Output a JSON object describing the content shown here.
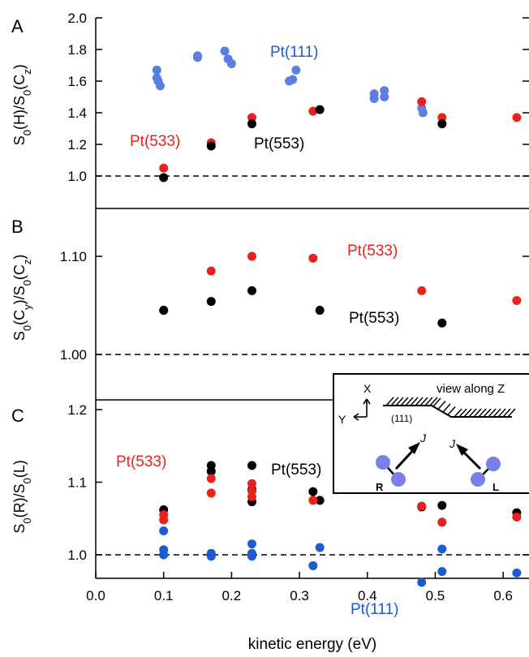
{
  "colors": {
    "pt553": "#000000",
    "pt533": "#e8231c",
    "pt111": "#1a5bd6",
    "pt111_light": "#5b7fe0"
  },
  "xlabel": "kinetic energy (eV)",
  "chart_data": [
    {
      "type": "scatter",
      "panel_label": "A",
      "ylabel_html": "S0(H)/S0(Cz)",
      "ylabel_parts": [
        [
          "S",
          "n"
        ],
        [
          "0",
          "sub"
        ],
        [
          "(H)/S",
          "n"
        ],
        [
          "0",
          "sub"
        ],
        [
          "(C",
          "n"
        ],
        [
          "z",
          "sub"
        ],
        [
          ")",
          "n"
        ]
      ],
      "xlim": [
        0.0,
        0.65
      ],
      "ylim": [
        0.9,
        2.0
      ],
      "yticks": [
        1.0,
        1.2,
        1.4,
        1.6,
        1.8,
        2.0
      ],
      "ytick_labels": [
        "1.0",
        "1.2",
        "1.4",
        "1.6",
        "1.8",
        "2.0"
      ],
      "reference_line": 1.0,
      "series": [
        {
          "name": "Pt(111)",
          "color": "#5b7fe0",
          "x": [
            0.09,
            0.09,
            0.092,
            0.095,
            0.15,
            0.15,
            0.19,
            0.195,
            0.2,
            0.285,
            0.29,
            0.295,
            0.41,
            0.41,
            0.425,
            0.425,
            0.48,
            0.482
          ],
          "y": [
            1.67,
            1.62,
            1.6,
            1.57,
            1.76,
            1.75,
            1.79,
            1.74,
            1.71,
            1.6,
            1.61,
            1.67,
            1.52,
            1.49,
            1.54,
            1.5,
            1.43,
            1.4
          ]
        },
        {
          "name": "Pt(533)",
          "color": "#e8231c",
          "x": [
            0.1,
            0.17,
            0.23,
            0.32,
            0.48,
            0.51,
            0.62
          ],
          "y": [
            1.05,
            1.21,
            1.37,
            1.41,
            1.47,
            1.37,
            1.37
          ]
        },
        {
          "name": "Pt(553)",
          "color": "#000000",
          "x": [
            0.1,
            0.17,
            0.23,
            0.33,
            0.51
          ],
          "y": [
            0.99,
            1.19,
            1.33,
            1.42,
            1.33
          ]
        }
      ]
    },
    {
      "type": "scatter",
      "panel_label": "B",
      "ylabel_html": "S0(Cy)/S0(Cz)",
      "ylabel_parts": [
        [
          "S",
          "n"
        ],
        [
          "0",
          "sub"
        ],
        [
          "(C",
          "n"
        ],
        [
          "y",
          "sub"
        ],
        [
          ")/S",
          "n"
        ],
        [
          "0",
          "sub"
        ],
        [
          "(C",
          "n"
        ],
        [
          "z",
          "sub"
        ],
        [
          ")",
          "n"
        ]
      ],
      "xlim": [
        0.0,
        0.65
      ],
      "ylim": [
        0.968,
        1.148
      ],
      "yticks": [
        1.0,
        1.1
      ],
      "ytick_labels": [
        "1.00",
        "1.10"
      ],
      "reference_line": 1.0,
      "series": [
        {
          "name": "Pt(533)",
          "color": "#e8231c",
          "x": [
            0.1,
            0.17,
            0.23,
            0.32,
            0.48,
            0.62
          ],
          "y": [
            1.045,
            1.085,
            1.1,
            1.098,
            1.065,
            1.055
          ]
        },
        {
          "name": "Pt(553)",
          "color": "#000000",
          "x": [
            0.1,
            0.17,
            0.23,
            0.33,
            0.51
          ],
          "y": [
            1.045,
            1.054,
            1.065,
            1.045,
            1.032
          ]
        }
      ]
    },
    {
      "type": "scatter",
      "panel_label": "C",
      "ylabel_html": "S0(R)/S0(L)",
      "ylabel_parts": [
        [
          "S",
          "n"
        ],
        [
          "0",
          "sub"
        ],
        [
          "(R)/S",
          "n"
        ],
        [
          "0",
          "sub"
        ],
        [
          "(L)",
          "n"
        ]
      ],
      "xlim": [
        0.0,
        0.65
      ],
      "ylim": [
        0.95,
        1.21
      ],
      "yticks": [
        1.0,
        1.1,
        1.2
      ],
      "ytick_labels": [
        "1.0",
        "1.1",
        "1.2"
      ],
      "reference_line": 1.0,
      "series": [
        {
          "name": "Pt(553)",
          "color": "#000000",
          "x": [
            0.1,
            0.17,
            0.17,
            0.23,
            0.23,
            0.23,
            0.32,
            0.33,
            0.48,
            0.51,
            0.62
          ],
          "y": [
            1.062,
            1.123,
            1.115,
            1.123,
            1.09,
            1.073,
            1.087,
            1.075,
            1.066,
            1.068,
            1.058
          ]
        },
        {
          "name": "Pt(533)",
          "color": "#e8231c",
          "x": [
            0.1,
            0.1,
            0.17,
            0.17,
            0.23,
            0.23,
            0.23,
            0.32,
            0.48,
            0.51,
            0.62
          ],
          "y": [
            1.055,
            1.048,
            1.105,
            1.085,
            1.098,
            1.088,
            1.08,
            1.075,
            1.067,
            1.045,
            1.052
          ]
        },
        {
          "name": "Pt(111)",
          "color": "#1a5bd6",
          "x": [
            0.1,
            0.1,
            0.1,
            0.17,
            0.17,
            0.23,
            0.23,
            0.23,
            0.32,
            0.33,
            0.48,
            0.51,
            0.51,
            0.62
          ],
          "y": [
            1.033,
            1.007,
            1.0,
            1.002,
            0.998,
            1.015,
            1.002,
            0.998,
            0.985,
            1.01,
            0.962,
            1.008,
            0.977,
            0.975
          ]
        }
      ]
    }
  ],
  "xaxis": {
    "ticks": [
      0.0,
      0.1,
      0.2,
      0.3,
      0.4,
      0.5,
      0.6
    ],
    "tick_labels": [
      "0.0",
      "0.1",
      "0.2",
      "0.3",
      "0.4",
      "0.5",
      "0.6"
    ]
  },
  "annotations": {
    "A_pt111": "Pt(111)",
    "A_pt533": "Pt(533)",
    "A_pt553": "Pt(553)",
    "B_pt533": "Pt(533)",
    "B_pt553": "Pt(553)",
    "C_pt533": "Pt(533)",
    "C_pt553": "Pt(553)",
    "C_pt111": "Pt(111)"
  },
  "inset": {
    "x_label": "X",
    "y_label": "Y",
    "view_label": "view along Z",
    "facet_label": "(111)",
    "j_left": "J",
    "j_right": "J",
    "r_label": "R",
    "l_label": "L"
  }
}
